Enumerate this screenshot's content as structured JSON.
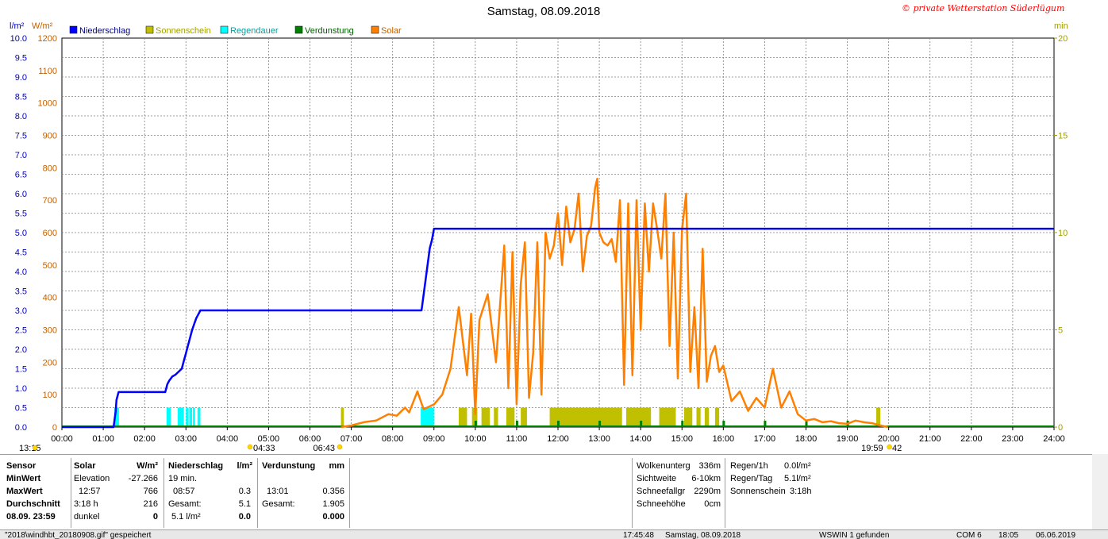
{
  "window": {
    "title": "Samstag, 08.09.2018",
    "copyright": "© private Wetterstation Süderlügum"
  },
  "colors": {
    "niederschlag": "#0000ff",
    "sonnenschein": "#c0c000",
    "regendauer": "#00ffff",
    "verdunstung": "#008000",
    "solar": "#ff8000",
    "grid": "#808080",
    "axis_left1": "#0000c0",
    "axis_left2": "#c06000",
    "axis_right": "#a0a000"
  },
  "chart_data": {
    "type": "line",
    "title": "Samstag, 08.09.2018",
    "legend": [
      "Niederschlag",
      "Sonnenschein",
      "Regendauer",
      "Verdunstung",
      "Solar"
    ],
    "legend_position": "top-left",
    "grid": true,
    "x_ticks": [
      "00:00",
      "01:00",
      "02:00",
      "03:00",
      "04:00",
      "05:00",
      "06:00",
      "07:00",
      "08:00",
      "09:00",
      "10:00",
      "11:00",
      "12:00",
      "13:00",
      "14:00",
      "15:00",
      "16:00",
      "17:00",
      "18:00",
      "19:00",
      "20:00",
      "21:00",
      "22:00",
      "23:00",
      "24:00"
    ],
    "x_range": [
      0,
      24
    ],
    "axis_left1": {
      "unit": "l/m²",
      "range": [
        0,
        10
      ],
      "ticks": [
        "10.0",
        "9.5",
        "9.0",
        "8.5",
        "8.0",
        "7.5",
        "7.0",
        "6.5",
        "6.0",
        "5.5",
        "5.0",
        "4.5",
        "4.0",
        "3.5",
        "3.0",
        "2.5",
        "2.0",
        "1.5",
        "1.0",
        "0.5",
        "0.0"
      ]
    },
    "axis_left2": {
      "unit": "W/m²",
      "range": [
        0,
        1200
      ],
      "ticks": [
        "1200",
        "1100",
        "1000",
        "900",
        "800",
        "700",
        "600",
        "500",
        "400",
        "300",
        "200",
        "100",
        "0"
      ]
    },
    "axis_right": {
      "unit": "min",
      "range": [
        0,
        20
      ],
      "ticks": [
        "20",
        "15",
        "10",
        "5",
        "0"
      ]
    },
    "series": [
      {
        "name": "Niederschlag",
        "axis": "left1",
        "x": [
          0,
          1.25,
          1.3,
          1.32,
          1.37,
          2.5,
          2.55,
          2.6,
          2.67,
          2.75,
          2.9,
          2.95,
          3.0,
          3.05,
          3.1,
          3.15,
          3.2,
          3.25,
          3.3,
          3.35,
          8.7,
          8.75,
          8.8,
          8.85,
          8.9,
          8.95,
          9.0,
          24
        ],
        "y": [
          0,
          0,
          0.4,
          0.7,
          0.9,
          0.9,
          1.1,
          1.2,
          1.3,
          1.35,
          1.5,
          1.7,
          1.9,
          2.1,
          2.3,
          2.5,
          2.65,
          2.8,
          2.9,
          3.0,
          3.0,
          3.4,
          3.8,
          4.2,
          4.6,
          4.8,
          5.1,
          5.1
        ]
      },
      {
        "name": "Solar",
        "axis": "left2",
        "x": [
          6.75,
          7.0,
          7.3,
          7.6,
          7.9,
          8.1,
          8.3,
          8.4,
          8.6,
          8.75,
          9.0,
          9.2,
          9.4,
          9.6,
          9.8,
          9.9,
          10.0,
          10.1,
          10.3,
          10.5,
          10.7,
          10.8,
          10.9,
          11.0,
          11.1,
          11.2,
          11.3,
          11.4,
          11.5,
          11.6,
          11.7,
          11.8,
          11.9,
          12.0,
          12.1,
          12.2,
          12.3,
          12.4,
          12.5,
          12.6,
          12.7,
          12.8,
          12.9,
          12.95,
          13.0,
          13.1,
          13.2,
          13.3,
          13.4,
          13.5,
          13.6,
          13.7,
          13.8,
          13.9,
          14.0,
          14.1,
          14.2,
          14.3,
          14.4,
          14.5,
          14.6,
          14.7,
          14.8,
          14.9,
          15.0,
          15.1,
          15.2,
          15.3,
          15.4,
          15.5,
          15.6,
          15.7,
          15.8,
          15.9,
          16.0,
          16.2,
          16.4,
          16.6,
          16.8,
          17.0,
          17.2,
          17.4,
          17.6,
          17.8,
          18.0,
          18.2,
          18.4,
          18.6,
          18.8,
          19.0,
          19.2,
          19.4,
          19.6,
          19.8,
          19.98
        ],
        "y": [
          0,
          5,
          15,
          20,
          40,
          35,
          60,
          45,
          110,
          55,
          70,
          100,
          180,
          370,
          160,
          350,
          40,
          330,
          410,
          200,
          560,
          120,
          540,
          70,
          440,
          570,
          90,
          230,
          570,
          100,
          600,
          520,
          560,
          660,
          500,
          680,
          570,
          610,
          720,
          480,
          590,
          620,
          740,
          766,
          600,
          570,
          560,
          580,
          510,
          700,
          130,
          690,
          160,
          700,
          300,
          690,
          480,
          690,
          610,
          520,
          720,
          250,
          600,
          150,
          610,
          720,
          170,
          370,
          120,
          550,
          140,
          220,
          250,
          170,
          190,
          80,
          110,
          50,
          90,
          60,
          180,
          60,
          110,
          40,
          20,
          25,
          15,
          18,
          12,
          10,
          20,
          15,
          12,
          5,
          0
        ]
      }
    ],
    "annotations": [
      {
        "text": "13:15",
        "x": 0
      },
      {
        "text": "04:33",
        "x": 4.55
      },
      {
        "text": "06:43",
        "x": 6.72
      },
      {
        "text": "19:59",
        "x": 19.98
      },
      {
        "text": "42",
        "x": 20.1
      }
    ]
  },
  "legend_labels": {
    "niederschlag": "Niederschlag",
    "sonnenschein": "Sonnenschein",
    "regendauer": "Regendauer",
    "verdunstung": "Verdunstung",
    "solar": "Solar"
  },
  "axis_units": {
    "left1": "l/m²",
    "left2": "W/m²",
    "right": "min"
  },
  "below_axis": {
    "sunrise_left": "13:15",
    "moon": "04:33",
    "sunrise": "06:43",
    "sunset": "19:59",
    "sunset_extra": "42"
  },
  "stats": {
    "sensor_col": [
      "Sensor",
      "MinWert",
      "MaxWert",
      "Durchschnitt",
      "08.09.  23:59"
    ],
    "solar_header": "Solar",
    "solar_unit": "W/m²",
    "solar_rows": [
      [
        "Elevation",
        "-27.266"
      ],
      [
        "12:57",
        "766"
      ],
      [
        "3:18 h",
        "216"
      ],
      [
        "dunkel",
        "0"
      ]
    ],
    "nied_header": "Niederschlag",
    "nied_unit": "l/m²",
    "nied_rows": [
      [
        "19 min.",
        ""
      ],
      [
        "08:57",
        "0.3"
      ],
      [
        "Gesamt:",
        "5.1"
      ],
      [
        "5.1 l/m²",
        "0.0"
      ]
    ],
    "verd_header": "Verdunstung",
    "verd_unit": "mm",
    "verd_rows": [
      [
        "",
        ""
      ],
      [
        "13:01",
        "0.356"
      ],
      [
        "Gesamt:",
        "1.905"
      ],
      [
        "",
        "0.000"
      ]
    ],
    "right1": [
      [
        "Wolkenunterg",
        "336m"
      ],
      [
        "Sichtweite",
        "6-10km"
      ],
      [
        "Schneefallgr",
        "2290m"
      ],
      [
        "Schneehöhe",
        "0cm"
      ]
    ],
    "right2": [
      [
        "Regen/1h",
        "0.0l/m²"
      ],
      [
        "Regen/Tag",
        "5.1l/m²"
      ],
      [
        "Sonnenschein",
        "3:18h"
      ]
    ]
  },
  "statusbar": {
    "file": "\"2018\\windhbt_20180908.gif\"  gespeichert",
    "time": "17:45:48",
    "date": "Samstag, 08.09.2018",
    "device": "WSWIN 1 gefunden",
    "com": "COM 6",
    "clock": "18:05",
    "date2": "06.06.2019"
  }
}
